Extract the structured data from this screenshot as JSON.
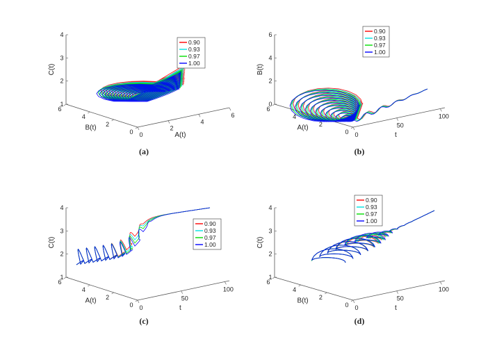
{
  "figure": {
    "colors": {
      "0.90": "#ff0000",
      "0.93": "#00e0e0",
      "0.97": "#00dd00",
      "1.00": "#0000ff",
      "axis": "#555555"
    }
  },
  "chart_data": [
    {
      "type": "line3d",
      "panel": "(a)",
      "title": "",
      "xlabel": "A(t)",
      "ylabel": "B(t)",
      "zlabel": "C(t)",
      "x_ticks": [
        "0",
        "2",
        "4",
        "6"
      ],
      "y_ticks": [
        "0",
        "2",
        "4",
        "6"
      ],
      "z_ticks": [
        "1",
        "2",
        "3",
        "4"
      ],
      "xlim": [
        0,
        6
      ],
      "ylim": [
        0,
        6
      ],
      "zlim": [
        1,
        4
      ],
      "legend": [
        "0.90",
        "0.93",
        "0.97",
        "1.00"
      ],
      "legend_position": "top-right",
      "series": [
        {
          "name": "0.90",
          "description": "oscillating trajectory, peak near A≈2.3, B≈4, C≈3"
        },
        {
          "name": "0.93"
        },
        {
          "name": "0.97"
        },
        {
          "name": "1.00"
        }
      ]
    },
    {
      "type": "line3d",
      "panel": "(b)",
      "title": "",
      "xlabel": "t",
      "ylabel": "A(t)",
      "zlabel": "B(t)",
      "x_ticks": [
        "0",
        "50",
        "100"
      ],
      "y_ticks": [
        "0",
        "2",
        "4",
        "6"
      ],
      "z_ticks": [
        "0",
        "2",
        "4",
        "6"
      ],
      "xlim": [
        0,
        100
      ],
      "ylim": [
        0,
        6
      ],
      "zlim": [
        0,
        6
      ],
      "legend": [
        "0.90",
        "0.93",
        "0.97",
        "1.00"
      ],
      "legend_position": "top-right",
      "series": [
        {
          "name": "0.90"
        },
        {
          "name": "0.93"
        },
        {
          "name": "0.97"
        },
        {
          "name": "1.00"
        }
      ]
    },
    {
      "type": "line3d",
      "panel": "(c)",
      "title": "",
      "xlabel": "t",
      "ylabel": "A(t)",
      "zlabel": "C(t)",
      "x_ticks": [
        "0",
        "50",
        "100"
      ],
      "y_ticks": [
        "0",
        "2",
        "4",
        "6"
      ],
      "z_ticks": [
        "1",
        "2",
        "3",
        "4"
      ],
      "xlim": [
        0,
        100
      ],
      "ylim": [
        0,
        6
      ],
      "zlim": [
        1,
        4
      ],
      "legend": [
        "0.90",
        "0.93",
        "0.97",
        "1.00"
      ],
      "legend_position": "right",
      "series": [
        {
          "name": "0.90"
        },
        {
          "name": "0.93"
        },
        {
          "name": "0.97"
        },
        {
          "name": "1.00"
        }
      ]
    },
    {
      "type": "line3d",
      "panel": "(d)",
      "title": "",
      "xlabel": "t",
      "ylabel": "B(t)",
      "zlabel": "C(t)",
      "x_ticks": [
        "0",
        "50",
        "100"
      ],
      "y_ticks": [
        "0",
        "2",
        "4",
        "6"
      ],
      "z_ticks": [
        "1",
        "2",
        "3",
        "4"
      ],
      "xlim": [
        0,
        100
      ],
      "ylim": [
        0,
        6
      ],
      "zlim": [
        1,
        4
      ],
      "legend": [
        "0.90",
        "0.93",
        "0.97",
        "1.00"
      ],
      "legend_position": "top-center",
      "series": [
        {
          "name": "0.90"
        },
        {
          "name": "0.93"
        },
        {
          "name": "0.97"
        },
        {
          "name": "1.00"
        }
      ]
    }
  ]
}
